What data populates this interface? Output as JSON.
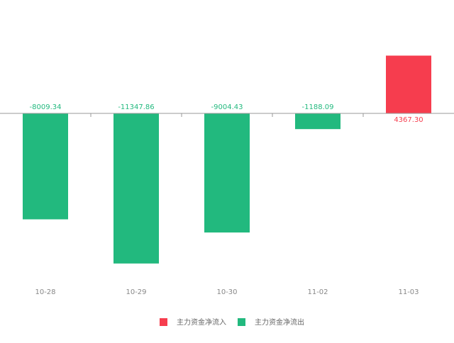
{
  "chart_data": {
    "type": "bar",
    "categories": [
      "10-28",
      "10-29",
      "10-30",
      "11-02",
      "11-03"
    ],
    "values": [
      -8009.34,
      -11347.86,
      -9004.43,
      -1188.09,
      4367.3
    ],
    "value_labels": [
      "-8009.34",
      "-11347.86",
      "-9004.43",
      "-1188.09",
      "4367.30"
    ],
    "ylim": [
      -12000,
      6000
    ],
    "legend": [
      {
        "name": "主力资金净流入",
        "color": "#f63d4e"
      },
      {
        "name": "主力资金净流出",
        "color": "#22b97e"
      }
    ]
  }
}
